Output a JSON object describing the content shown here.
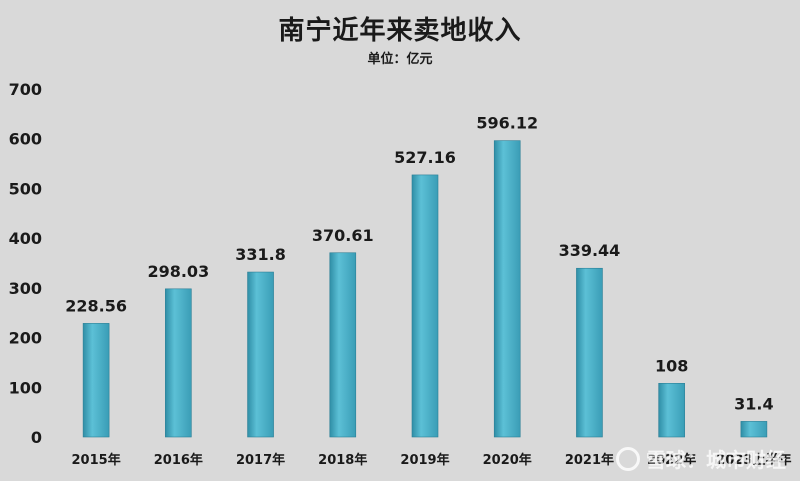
{
  "chart_data": {
    "type": "bar",
    "title": "南宁近年来卖地收入",
    "subtitle": "单位：亿元",
    "categories": [
      "2015年",
      "2016年",
      "2017年",
      "2018年",
      "2019年",
      "2020年",
      "2021年",
      "2022年",
      "2023上半年"
    ],
    "values": [
      228.56,
      298.03,
      331.8,
      370.61,
      527.16,
      596.12,
      339.44,
      108,
      31.4
    ],
    "value_labels": [
      "228.56",
      "298.03",
      "331.8",
      "370.61",
      "527.16",
      "596.12",
      "339.44",
      "108",
      "31.4"
    ],
    "ylim": [
      0,
      700
    ],
    "yticks": [
      "0",
      "100",
      "200",
      "300",
      "400",
      "500",
      "600",
      "700"
    ],
    "xlabel": "",
    "ylabel": "",
    "grid": false,
    "colors": {
      "bar": "#4bacc6",
      "bar_dark": "#2f8ea6",
      "background": "#d9d9d9"
    }
  },
  "watermark": {
    "text": "雪球：城市财经",
    "icon": "snowball-logo-icon"
  }
}
